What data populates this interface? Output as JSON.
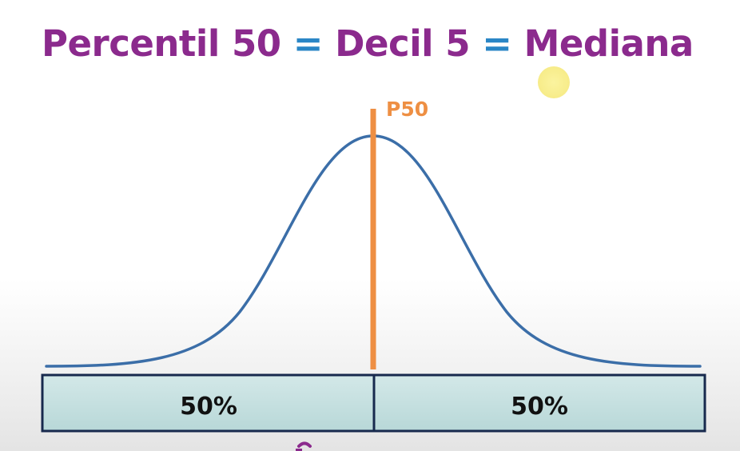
{
  "title": {
    "part1": "Percentil 50",
    "eq1": "=",
    "part2": "Decil 5",
    "eq2": "=",
    "part3": "Mediana"
  },
  "marker": {
    "label": "P50"
  },
  "segments": [
    {
      "label": "50%"
    },
    {
      "label": "50%"
    }
  ],
  "colors": {
    "title_text": "#8b2a8d",
    "equals_sign": "#2a86c6",
    "curve": "#3b6ea8",
    "marker": "#ee8f43",
    "bar_fill": "#c4e0e0",
    "bar_border": "#17294d"
  }
}
